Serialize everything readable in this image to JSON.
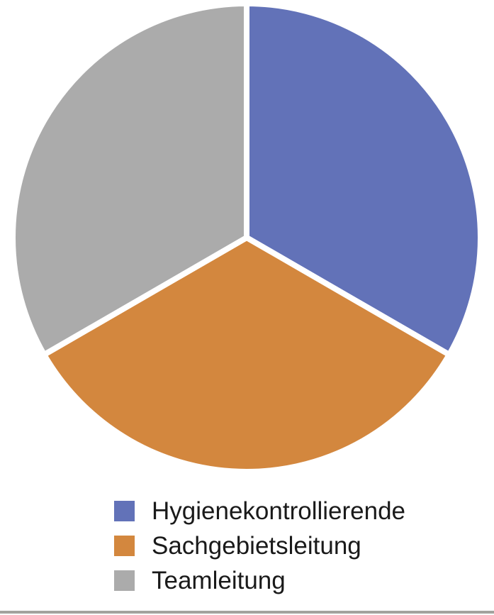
{
  "chart_data": {
    "type": "pie",
    "title": "",
    "categories": [
      "Hygienekontrollierende",
      "Sachgebietsleitung",
      "Teamleitung"
    ],
    "values": [
      33.3,
      33.3,
      33.3
    ],
    "colors": [
      "#6272b8",
      "#d3873e",
      "#ababab"
    ],
    "start_angle_deg": 0,
    "direction": "clockwise",
    "slice_separator_color": "#ffffff",
    "legend_position": "bottom"
  },
  "footer": {
    "divider_color": "#a3a39e"
  }
}
